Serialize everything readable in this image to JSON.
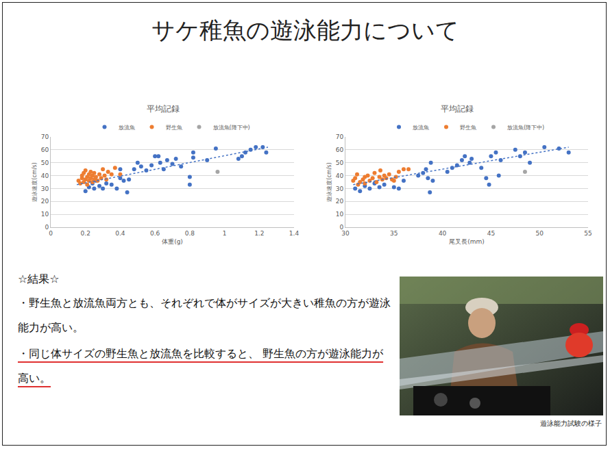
{
  "slide_title": "サケ稚魚の遊泳能力について",
  "chart_data": [
    {
      "type": "scatter",
      "title": "平均記録",
      "x_label": "体重(g)",
      "y_label": "遊泳速度(cm/s)",
      "xlim": [
        0,
        1.4
      ],
      "xticks": [
        0,
        0.2,
        0.4,
        0.6,
        0.8,
        1,
        1.2,
        1.4
      ],
      "ylim": [
        0,
        70
      ],
      "yticks": [
        0,
        10,
        20,
        30,
        40,
        50,
        60,
        70
      ],
      "grid": "y",
      "legend": "top",
      "series": [
        {
          "name": "放流魚",
          "color": "#4472c4",
          "marker": "circle",
          "x": [
            0.2,
            0.22,
            0.24,
            0.25,
            0.26,
            0.28,
            0.3,
            0.32,
            0.35,
            0.38,
            0.4,
            0.4,
            0.42,
            0.44,
            0.45,
            0.48,
            0.5,
            0.52,
            0.55,
            0.58,
            0.6,
            0.62,
            0.63,
            0.65,
            0.67,
            0.7,
            0.72,
            0.75,
            0.8,
            0.8,
            0.82,
            0.82,
            0.9,
            0.95,
            1.08,
            1.1,
            1.12,
            1.15,
            1.18,
            1.22,
            1.24
          ],
          "values": [
            28,
            31,
            34,
            30,
            36,
            32,
            30,
            34,
            33,
            30,
            38,
            45,
            36,
            27,
            37,
            45,
            50,
            47,
            44,
            48,
            55,
            55,
            50,
            45,
            52,
            49,
            53,
            47,
            39,
            33,
            54,
            58,
            52,
            61,
            53,
            55,
            58,
            60,
            62,
            62,
            58
          ]
        },
        {
          "name": "野生魚",
          "color": "#ed7d31",
          "marker": "circle",
          "x": [
            0.16,
            0.17,
            0.18,
            0.18,
            0.19,
            0.19,
            0.2,
            0.2,
            0.21,
            0.21,
            0.22,
            0.22,
            0.23,
            0.23,
            0.24,
            0.24,
            0.25,
            0.25,
            0.26,
            0.27,
            0.28,
            0.29,
            0.3,
            0.31,
            0.32,
            0.33,
            0.35,
            0.37,
            0.4
          ],
          "values": [
            36,
            34,
            38,
            40,
            35,
            42,
            37,
            44,
            39,
            33,
            41,
            36,
            38,
            43,
            35,
            40,
            37,
            42,
            39,
            36,
            41,
            38,
            45,
            40,
            37,
            43,
            41,
            46,
            41
          ]
        },
        {
          "name": "放流魚(降下中)",
          "color": "#a5a5a5",
          "marker": "circle",
          "x": [
            0.96
          ],
          "values": [
            43
          ]
        },
        {
          "type": "line",
          "line_style": "dot",
          "color": "#4472c4",
          "x": [
            0.15,
            1.25
          ],
          "values": [
            33,
            62
          ]
        }
      ]
    },
    {
      "type": "scatter",
      "title": "平均記録",
      "x_label": "尾叉長(mm)",
      "y_label": "遊泳速度(cm/s)",
      "xlim": [
        30,
        55
      ],
      "xticks": [
        30,
        35,
        40,
        45,
        50,
        55
      ],
      "ylim": [
        0,
        70
      ],
      "yticks": [
        0,
        10,
        20,
        30,
        40,
        50,
        60,
        70
      ],
      "grid": "y",
      "legend": "top",
      "series": [
        {
          "name": "放流魚",
          "color": "#4472c4",
          "marker": "circle",
          "x": [
            31,
            31.5,
            32,
            32.5,
            33,
            33.5,
            34,
            35,
            35.5,
            36,
            37.5,
            38,
            38.3,
            38.5,
            38.7,
            38.8,
            39,
            40.5,
            41,
            41.5,
            42,
            42.3,
            42.8,
            43,
            44,
            44.5,
            44.8,
            45,
            45.5,
            45.8,
            46,
            47.5,
            48,
            48.5,
            49,
            50.5,
            52,
            53
          ],
          "values": [
            30,
            28,
            32,
            30,
            34,
            31,
            33,
            31,
            30,
            36,
            40,
            42,
            45,
            38,
            27,
            50,
            36,
            43,
            46,
            48,
            52,
            55,
            50,
            53,
            46,
            38,
            33,
            55,
            58,
            40,
            52,
            60,
            55,
            58,
            50,
            62,
            61,
            58
          ]
        },
        {
          "name": "野生魚",
          "color": "#ed7d31",
          "marker": "circle",
          "x": [
            30.8,
            31,
            31.2,
            31.3,
            31.5,
            31.8,
            32,
            32,
            32.3,
            32.5,
            32.8,
            33,
            33.2,
            33.5,
            33.6,
            33.8,
            34,
            34.2,
            34.5,
            34.8,
            35,
            35.2,
            35.5,
            36,
            36.5
          ],
          "values": [
            36,
            38,
            41,
            33,
            35,
            37,
            39,
            34,
            40,
            36,
            38,
            42,
            35,
            39,
            44,
            37,
            40,
            38,
            41,
            37,
            36,
            39,
            43,
            45,
            45
          ]
        },
        {
          "name": "放流魚(降下中)",
          "color": "#a5a5a5",
          "marker": "circle",
          "x": [
            48.5
          ],
          "values": [
            43
          ]
        },
        {
          "type": "line",
          "line_style": "dot",
          "color": "#4472c4",
          "x": [
            30.8,
            53
          ],
          "values": [
            33,
            62
          ]
        }
      ]
    }
  ],
  "results_heading": "☆結果☆",
  "bullets": [
    {
      "text": "・野生魚と放流魚両方とも、それぞれで体がサイズが大きい稚魚の方が遊泳能力が高い。",
      "underline": false
    },
    {
      "text": "・同じ体サイズの野生魚と放流魚を比較すると、 野生魚の方が遊泳能力が高い。",
      "underline": true
    }
  ],
  "photo_caption": "遊泳能力試験の様子"
}
